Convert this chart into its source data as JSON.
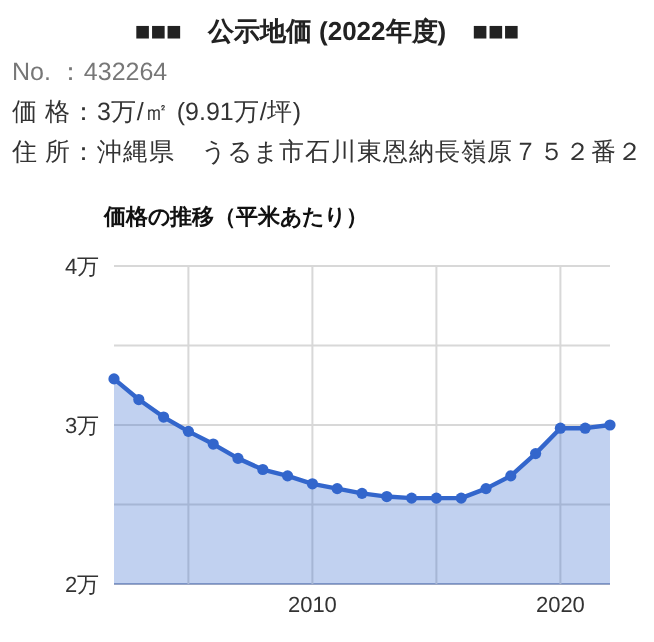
{
  "chart_data": {
    "type": "area",
    "title": "■■■　公示地価 (2022年度)　■■■",
    "subtitle": "価格の推移（平米あたり）",
    "annotations": [
      "No.  ：432264",
      "価 格：3万/㎡ (9.91万/坪)",
      "住 所：沖縄県　うるま市石川東恩納長嶺原７５２番２"
    ],
    "x": [
      2002,
      2003,
      2004,
      2005,
      2006,
      2007,
      2008,
      2009,
      2010,
      2011,
      2012,
      2013,
      2014,
      2015,
      2016,
      2017,
      2018,
      2019,
      2020,
      2021,
      2022
    ],
    "series": [
      {
        "color": "#3366cc",
        "values": [
          3.29,
          3.16,
          3.05,
          2.96,
          2.88,
          2.79,
          2.72,
          2.68,
          2.63,
          2.6,
          2.57,
          2.55,
          2.54,
          2.54,
          2.54,
          2.6,
          2.68,
          2.82,
          2.98,
          2.98,
          3.0
        ]
      }
    ],
    "xlim": [
      2002,
      2022
    ],
    "xticks": [
      {
        "value": 2005,
        "label": null
      },
      2010,
      {
        "value": 2015,
        "label": null
      },
      2020
    ],
    "ylim": [
      2,
      4
    ],
    "yticks": [
      {
        "value": 2,
        "label": "2万"
      },
      {
        "value": 2.5,
        "label": null
      },
      {
        "value": 3,
        "label": "3万"
      },
      {
        "value": 3.5,
        "label": null
      },
      {
        "value": 4,
        "label": "4万"
      }
    ],
    "grid": true,
    "marker": "circle",
    "line_style": "solid"
  }
}
